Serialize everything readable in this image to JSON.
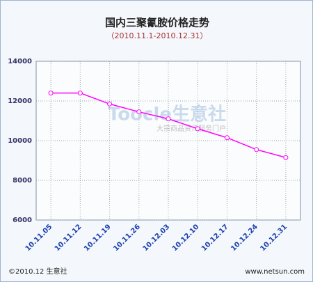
{
  "chart_data": {
    "type": "line",
    "title": "国内三聚氰胺价格走势",
    "subtitle": "（2010.11.1-2010.12.31）",
    "categories": [
      "10.11.05",
      "10.11.12",
      "10.11.19",
      "10.11.26",
      "10.12.03",
      "10.12.10",
      "10.12.17",
      "10.12.24",
      "10.12.31"
    ],
    "series": [
      {
        "name": "三聚氰胺",
        "color": "#ff00ff",
        "values": [
          12400,
          12400,
          11850,
          11450,
          11100,
          10600,
          10150,
          9550,
          9150
        ]
      }
    ],
    "ylim": [
      6000,
      14000
    ],
    "yticks": [
      6000,
      8000,
      10000,
      12000,
      14000
    ],
    "grid": true,
    "watermark": [
      "Toocle生意社",
      "大宗商品资讯服务门户"
    ],
    "footer_left": "©2010.12 生意社",
    "footer_right": "www.netsun.com"
  }
}
